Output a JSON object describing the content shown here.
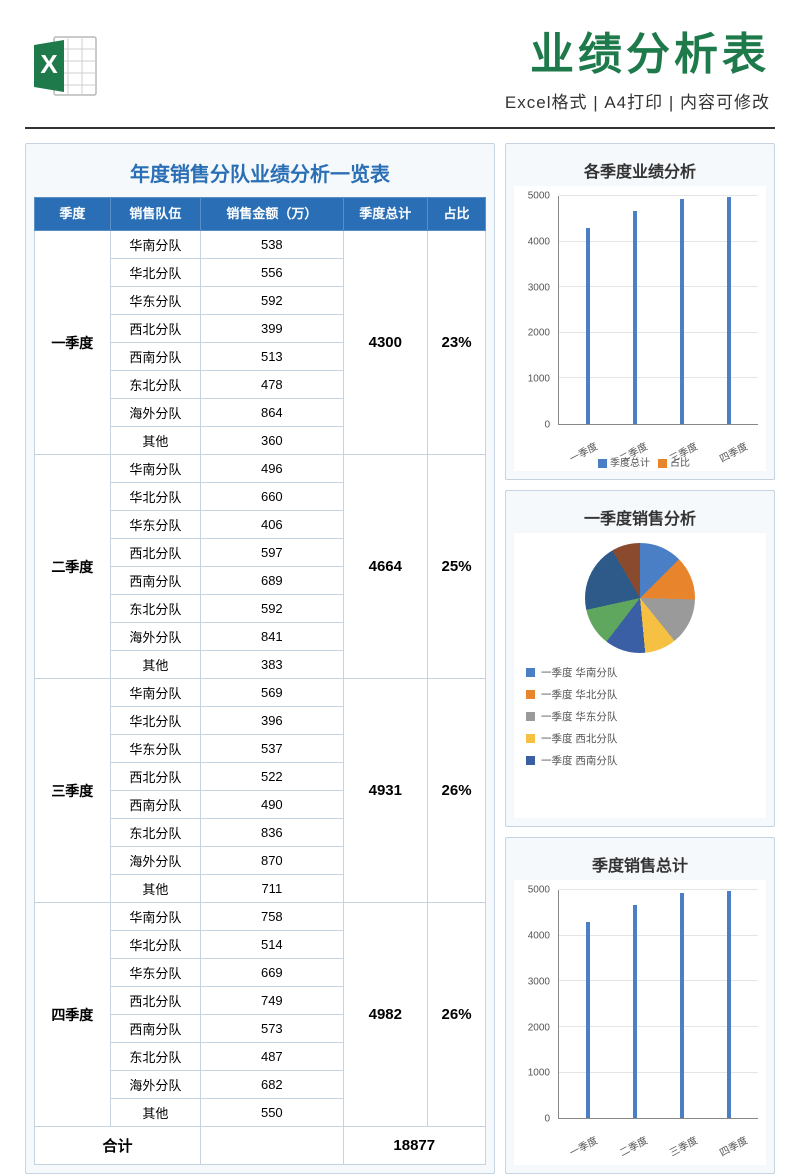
{
  "header": {
    "main_title": "业绩分析表",
    "subtitle": "Excel格式 | A4打印 | 内容可修改",
    "title_color": "#1e7a4a"
  },
  "excel_icon": {
    "sheet_color": "#ffffff",
    "sheet_border": "#b8b8b8",
    "badge_color": "#1e7a4a",
    "letter": "X"
  },
  "table": {
    "title": "年度销售分队业绩分析一览表",
    "title_color": "#2a6fb5",
    "header_bg": "#2a6fb5",
    "columns": [
      "季度",
      "销售队伍",
      "销售金额（万）",
      "季度总计",
      "占比"
    ],
    "quarters": [
      {
        "name": "一季度",
        "total": 4300,
        "pct": "23%",
        "rows": [
          [
            "华南分队",
            538
          ],
          [
            "华北分队",
            556
          ],
          [
            "华东分队",
            592
          ],
          [
            "西北分队",
            399
          ],
          [
            "西南分队",
            513
          ],
          [
            "东北分队",
            478
          ],
          [
            "海外分队",
            864
          ],
          [
            "其他",
            360
          ]
        ]
      },
      {
        "name": "二季度",
        "total": 4664,
        "pct": "25%",
        "rows": [
          [
            "华南分队",
            496
          ],
          [
            "华北分队",
            660
          ],
          [
            "华东分队",
            406
          ],
          [
            "西北分队",
            597
          ],
          [
            "西南分队",
            689
          ],
          [
            "东北分队",
            592
          ],
          [
            "海外分队",
            841
          ],
          [
            "其他",
            383
          ]
        ]
      },
      {
        "name": "三季度",
        "total": 4931,
        "pct": "26%",
        "rows": [
          [
            "华南分队",
            569
          ],
          [
            "华北分队",
            396
          ],
          [
            "华东分队",
            537
          ],
          [
            "西北分队",
            522
          ],
          [
            "西南分队",
            490
          ],
          [
            "东北分队",
            836
          ],
          [
            "海外分队",
            870
          ],
          [
            "其他",
            711
          ]
        ]
      },
      {
        "name": "四季度",
        "total": 4982,
        "pct": "26%",
        "rows": [
          [
            "华南分队",
            758
          ],
          [
            "华北分队",
            514
          ],
          [
            "华东分队",
            669
          ],
          [
            "西北分队",
            749
          ],
          [
            "西南分队",
            573
          ],
          [
            "东北分队",
            487
          ],
          [
            "海外分队",
            682
          ],
          [
            "其他",
            550
          ]
        ]
      }
    ],
    "sum_label": "合计",
    "sum_value": 18877
  },
  "chart1": {
    "title": "各季度业绩分析",
    "type": "bar",
    "categories": [
      "一季度",
      "二季度",
      "三季度",
      "四季度"
    ],
    "values": [
      4300,
      4664,
      4931,
      4982
    ],
    "bar_color": "#4a7fc5",
    "ylim": [
      0,
      5000
    ],
    "ytick_step": 1000,
    "grid_color": "#e5e5e5",
    "legend": [
      "季度总计",
      "占比"
    ],
    "legend_colors": [
      "#4a7fc5",
      "#e8842c"
    ]
  },
  "chart2": {
    "title": "一季度销售分析",
    "type": "pie",
    "items": [
      {
        "label": "一季度 华南分队",
        "value": 538,
        "color": "#4a7fc5"
      },
      {
        "label": "一季度 华北分队",
        "value": 556,
        "color": "#e8842c"
      },
      {
        "label": "一季度 华东分队",
        "value": 592,
        "color": "#9a9a9a"
      },
      {
        "label": "一季度 西北分队",
        "value": 399,
        "color": "#f6c042"
      },
      {
        "label": "一季度 西南分队",
        "value": 513,
        "color": "#3a5fa5"
      }
    ],
    "extra_colors": [
      "#5fa65f",
      "#2e5a8a",
      "#8a4a2e"
    ]
  },
  "chart3": {
    "title": "季度销售总计",
    "type": "bar",
    "categories": [
      "一季度",
      "二季度",
      "三季度",
      "四季度"
    ],
    "values": [
      4300,
      4664,
      4931,
      4982
    ],
    "bar_color": "#4a7fc5",
    "ylim": [
      0,
      5000
    ],
    "ytick_step": 1000,
    "grid_color": "#e5e5e5"
  }
}
